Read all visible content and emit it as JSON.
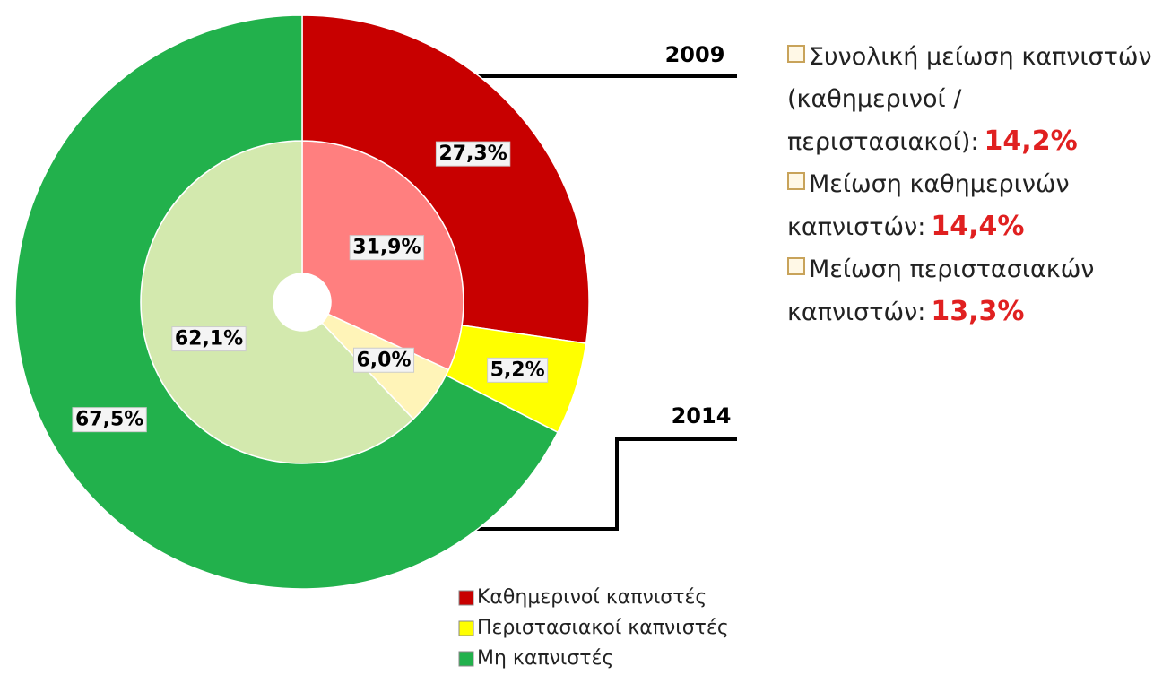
{
  "chart_data": {
    "type": "pie",
    "categories": [
      "Καθημερινοί καπνιστές",
      "Περιστασιακοί καπνιστές",
      "Μη καπνιστές"
    ],
    "series": [
      {
        "name": "2009",
        "values": [
          31.9,
          6.0,
          62.1
        ],
        "value_labels": [
          "31,9%",
          "6,0%",
          "62,1%"
        ],
        "colors": [
          "#ff7f7f",
          "#fff4b8",
          "#d3e9ae"
        ]
      },
      {
        "name": "2014",
        "values": [
          27.3,
          5.2,
          67.5
        ],
        "value_labels": [
          "27,3%",
          "5,2%",
          "67,5%"
        ],
        "colors": [
          "#c80000",
          "#ffff00",
          "#22b14c"
        ]
      }
    ],
    "annotations": [
      {
        "text": "Συνολική μείωση καπνιστών (καθημερινοί / περιστασιακοί):",
        "highlight": "14,2%"
      },
      {
        "text": "Μείωση καθημερινών καπνιστών:",
        "highlight": "14,4%"
      },
      {
        "text": "Μείωση περιστασιακών καπνιστών:",
        "highlight": "13,3%"
      }
    ]
  }
}
